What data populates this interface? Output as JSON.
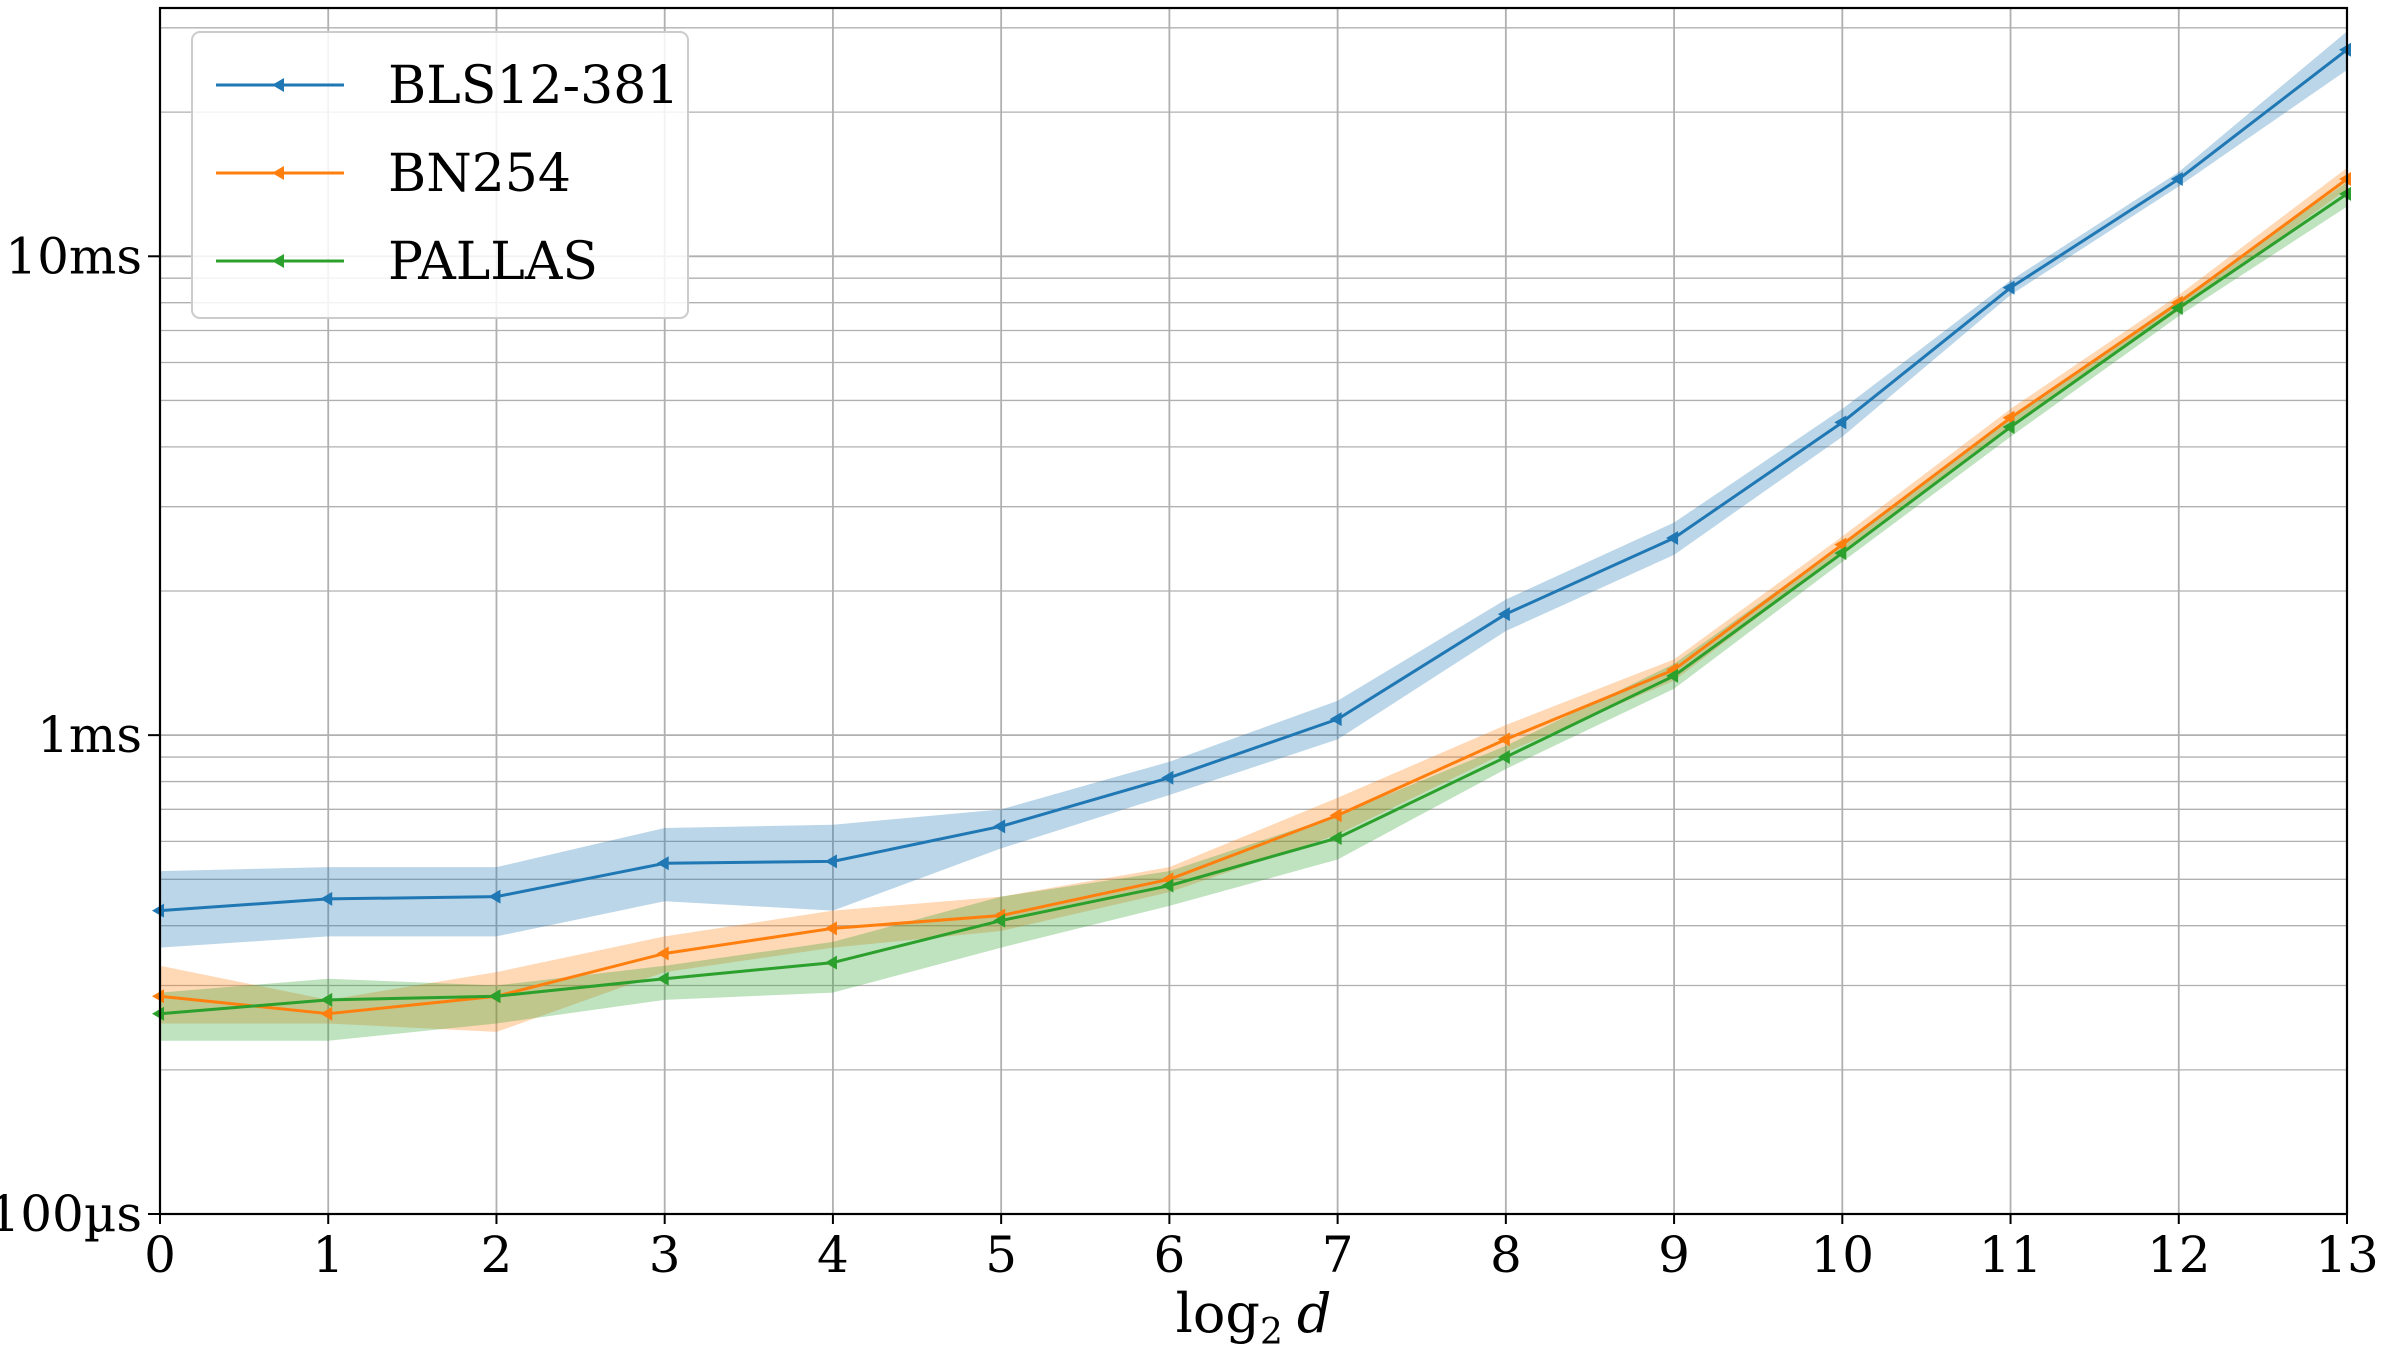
{
  "chart_data": {
    "type": "line",
    "title": "",
    "xlabel": "log2 d",
    "xlabel_parts": {
      "base": "log",
      "subscript": "2",
      "variable": "d"
    },
    "ylabel": "",
    "x": [
      0,
      1,
      2,
      3,
      4,
      5,
      6,
      7,
      8,
      9,
      10,
      11,
      12,
      13
    ],
    "xlim": [
      0,
      13
    ],
    "x_ticks": [
      "0",
      "1",
      "2",
      "3",
      "4",
      "5",
      "6",
      "7",
      "8",
      "9",
      "10",
      "11",
      "12",
      "13"
    ],
    "y_scale": "log",
    "y_unit": "ms",
    "ylim": [
      0.1,
      33
    ],
    "y_ticks": [
      {
        "value": 0.1,
        "label": "100µs"
      },
      {
        "value": 1,
        "label": "1ms"
      },
      {
        "value": 10,
        "label": "10ms"
      }
    ],
    "grid": true,
    "legend_position": "top-left",
    "series": [
      {
        "name": "BLS12-381",
        "color": "#1f77b4",
        "values": [
          0.43,
          0.455,
          0.46,
          0.54,
          0.545,
          0.645,
          0.815,
          1.08,
          1.79,
          2.58,
          4.5,
          8.6,
          14.5,
          27
        ],
        "lower": [
          0.36,
          0.38,
          0.38,
          0.45,
          0.43,
          0.58,
          0.75,
          0.98,
          1.65,
          2.38,
          4.2,
          8.3,
          14.0,
          24.5
        ],
        "upper": [
          0.52,
          0.53,
          0.53,
          0.64,
          0.65,
          0.7,
          0.88,
          1.18,
          1.92,
          2.78,
          4.8,
          8.9,
          15.0,
          29.5
        ]
      },
      {
        "name": "BN254",
        "color": "#ff7f0e",
        "values": [
          0.285,
          0.262,
          0.285,
          0.35,
          0.395,
          0.42,
          0.5,
          0.68,
          0.98,
          1.37,
          2.5,
          4.6,
          8.0,
          14.5
        ],
        "lower": [
          0.25,
          0.25,
          0.24,
          0.32,
          0.36,
          0.39,
          0.47,
          0.62,
          0.92,
          1.3,
          2.4,
          4.4,
          7.7,
          13.8
        ],
        "upper": [
          0.33,
          0.28,
          0.32,
          0.38,
          0.43,
          0.46,
          0.53,
          0.74,
          1.05,
          1.44,
          2.6,
          4.8,
          8.3,
          15.3
        ]
      },
      {
        "name": "PALLAS",
        "color": "#2ca02c",
        "values": [
          0.262,
          0.28,
          0.285,
          0.31,
          0.335,
          0.41,
          0.485,
          0.61,
          0.9,
          1.33,
          2.4,
          4.4,
          7.8,
          13.5
        ],
        "lower": [
          0.23,
          0.23,
          0.25,
          0.28,
          0.29,
          0.36,
          0.44,
          0.55,
          0.85,
          1.25,
          2.3,
          4.2,
          7.5,
          12.7
        ],
        "upper": [
          0.29,
          0.31,
          0.3,
          0.33,
          0.37,
          0.46,
          0.52,
          0.68,
          0.95,
          1.41,
          2.5,
          4.6,
          8.1,
          14.3
        ]
      }
    ]
  }
}
